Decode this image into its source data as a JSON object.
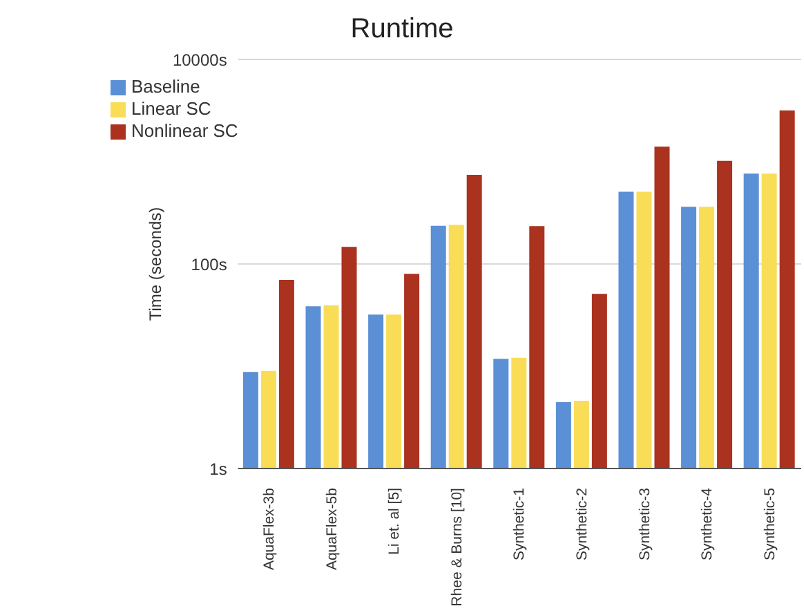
{
  "chart_data": {
    "type": "bar",
    "title": "Runtime",
    "ylabel": "Time (seconds)",
    "categories": [
      "AquaFlex-3b",
      "AquaFlex-5b",
      "Li et. al [5]",
      "Rhee & Burns [10]",
      "Synthetic-1",
      "Synthetic-2",
      "Synthetic-3",
      "Synthetic-4",
      "Synthetic-5"
    ],
    "series": [
      {
        "name": "Baseline",
        "color": "#5b8fd6",
        "values": [
          8.8,
          38.6,
          32,
          236,
          11.8,
          4.45,
          509,
          363,
          766
        ]
      },
      {
        "name": "Linear SC",
        "color": "#f9dd57",
        "values": [
          9.0,
          39.4,
          32,
          241,
          12.1,
          4.6,
          509,
          363,
          766
        ]
      },
      {
        "name": "Nonlinear SC",
        "color": "#aa321f",
        "values": [
          70,
          147,
          80,
          743,
          234,
          51,
          1400,
          1020,
          3180
        ]
      }
    ],
    "log": "y",
    "ylim": [
      1,
      10000
    ],
    "yticks": [
      {
        "value": 1,
        "label": "1s"
      },
      {
        "value": 100,
        "label": "100s"
      },
      {
        "value": 10000,
        "label": "10000s"
      }
    ],
    "grid": "y",
    "legend": "top left"
  }
}
